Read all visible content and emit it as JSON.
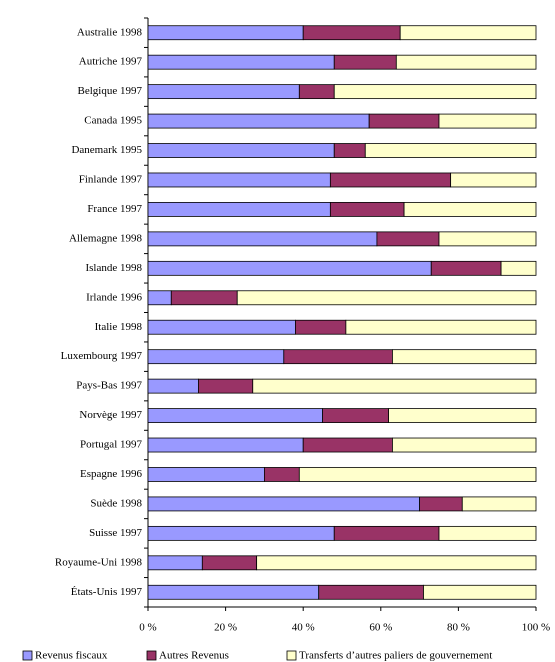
{
  "chart_data": {
    "type": "stacked-barh",
    "categories": [
      "Australie 1998",
      "Autriche 1997",
      "Belgique 1997",
      "Canada 1995",
      "Danemark 1995",
      "Finlande 1997",
      "France 1997",
      "Allemagne 1998",
      "Islande 1998",
      "Irlande 1996",
      "Italie 1998",
      "Luxembourg 1997",
      "Pays-Bas 1997",
      "Norvège 1997",
      "Portugal 1997",
      "Espagne 1996",
      "Suède 1998",
      "Suisse 1997",
      "Royaume-Uni 1998",
      "États-Unis 1997"
    ],
    "series": [
      {
        "name": "Revenus fiscaux",
        "color": "#9999ff",
        "values": [
          40,
          48,
          39,
          57,
          48,
          47,
          47,
          59,
          73,
          6,
          38,
          35,
          13,
          45,
          40,
          30,
          70,
          48,
          14,
          44
        ]
      },
      {
        "name": "Autres Revenus",
        "color": "#993366",
        "values": [
          25,
          16,
          9,
          18,
          8,
          31,
          19,
          16,
          18,
          17,
          13,
          28,
          14,
          17,
          23,
          9,
          11,
          27,
          14,
          27
        ]
      },
      {
        "name": "Transferts d’autres paliers de gouvernement",
        "color": "#ffffcc",
        "values": [
          35,
          36,
          52,
          25,
          44,
          22,
          34,
          25,
          9,
          77,
          49,
          37,
          73,
          38,
          37,
          61,
          19,
          25,
          72,
          29
        ]
      }
    ],
    "xlim": [
      0,
      100
    ],
    "xticks": [
      {
        "value": 0,
        "label": "0 %"
      },
      {
        "value": 20,
        "label": "20 %"
      },
      {
        "value": 40,
        "label": "40 %"
      },
      {
        "value": 60,
        "label": "60 %"
      },
      {
        "value": 80,
        "label": "80 %"
      },
      {
        "value": 100,
        "label": "100 %"
      }
    ],
    "legend": "bottom"
  }
}
